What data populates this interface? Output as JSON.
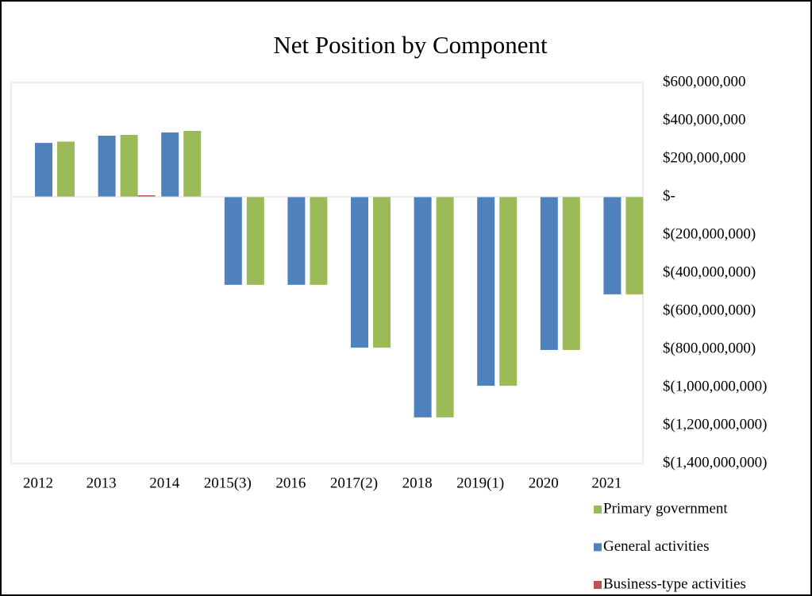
{
  "chart_data": {
    "type": "bar",
    "title": "Net Position by Component",
    "categories": [
      "2012",
      "2013",
      "2014",
      "2015(3)",
      "2016",
      "2017(2)",
      "2018",
      "2019(1)",
      "2020",
      "2021"
    ],
    "series": [
      {
        "name": "Primary government",
        "color": "#9bbb59",
        "values": [
          290000000,
          325000000,
          346000000,
          -462000000,
          -462000000,
          -792000000,
          -1158000000,
          -992000000,
          -804000000,
          -512000000
        ]
      },
      {
        "name": "General activities",
        "color": "#4f81bd",
        "values": [
          283000000,
          321000000,
          338000000,
          -462000000,
          -462000000,
          -792000000,
          -1158000000,
          -992000000,
          -804000000,
          -512000000
        ]
      },
      {
        "name": "Business-type activities",
        "color": "#c0504d",
        "values": [
          0,
          8000000,
          0,
          0,
          0,
          0,
          0,
          0,
          0,
          0
        ]
      }
    ],
    "ylim": [
      -1400000000,
      600000000
    ],
    "yticks": [
      {
        "value": 600000000,
        "label": "$600,000,000"
      },
      {
        "value": 400000000,
        "label": "$400,000,000"
      },
      {
        "value": 200000000,
        "label": "$200,000,000"
      },
      {
        "value": 0,
        "label": "$-"
      },
      {
        "value": -200000000,
        "label": "$(200,000,000)"
      },
      {
        "value": -400000000,
        "label": "$(400,000,000)"
      },
      {
        "value": -600000000,
        "label": "$(600,000,000)"
      },
      {
        "value": -800000000,
        "label": "$(800,000,000)"
      },
      {
        "value": -1000000000,
        "label": "$(1,000,000,000)"
      },
      {
        "value": -1200000000,
        "label": "$(1,200,000,000)"
      },
      {
        "value": -1400000000,
        "label": "$(1,400,000,000)"
      }
    ],
    "grid": false,
    "legend": "bottom-right"
  }
}
